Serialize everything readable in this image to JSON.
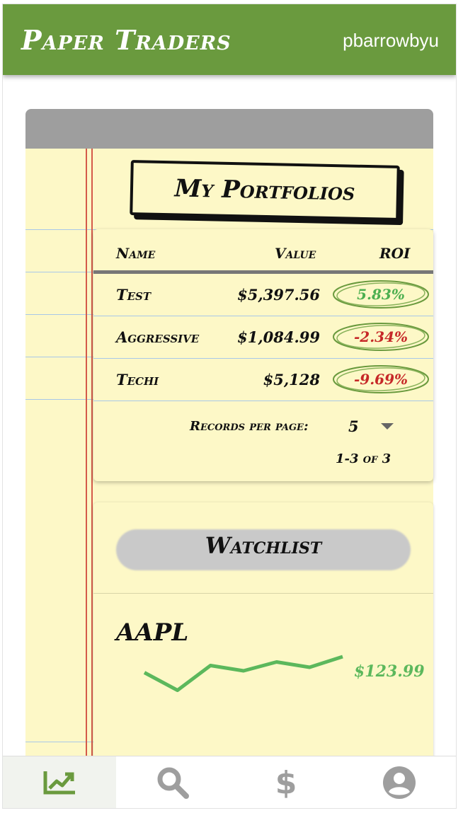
{
  "app": {
    "title": "Paper Traders",
    "username": "pbarrowbyu"
  },
  "portfolios": {
    "title": "My Portfolios",
    "columns": {
      "name": "Name",
      "value": "Value",
      "roi": "ROI"
    },
    "rows": [
      {
        "name": "Test",
        "value": "$5,397.56",
        "roi": "5.83%",
        "roi_color": "#4caf50"
      },
      {
        "name": "Aggressive",
        "value": "$1,084.99",
        "roi": "-2.34%",
        "roi_color": "#c62828"
      },
      {
        "name": "Techi",
        "value": "$5,128",
        "roi": "-9.69%",
        "roi_color": "#c62828"
      }
    ],
    "pagination": {
      "records_label": "Records per page:",
      "records_value": "5",
      "range": "1-3 of 3"
    }
  },
  "watchlist": {
    "title": "Watchlist",
    "items": [
      {
        "symbol": "AAPL",
        "price": "$123.99",
        "price_color": "#5cb85c",
        "sparkline": [
          0.55,
          0.05,
          0.75,
          0.6,
          0.85,
          0.7,
          1.0
        ]
      }
    ]
  },
  "nav": {
    "items": [
      {
        "icon": "trending-up-icon",
        "active": true
      },
      {
        "icon": "search-icon",
        "active": false
      },
      {
        "icon": "dollar-icon",
        "active": false
      },
      {
        "icon": "account-circle-icon",
        "active": false
      }
    ]
  },
  "colors": {
    "accent": "#6a9a3e",
    "paper": "#fdf8c7",
    "margin_line": "#d45a4a",
    "rule_line": "#a8c8e8"
  }
}
